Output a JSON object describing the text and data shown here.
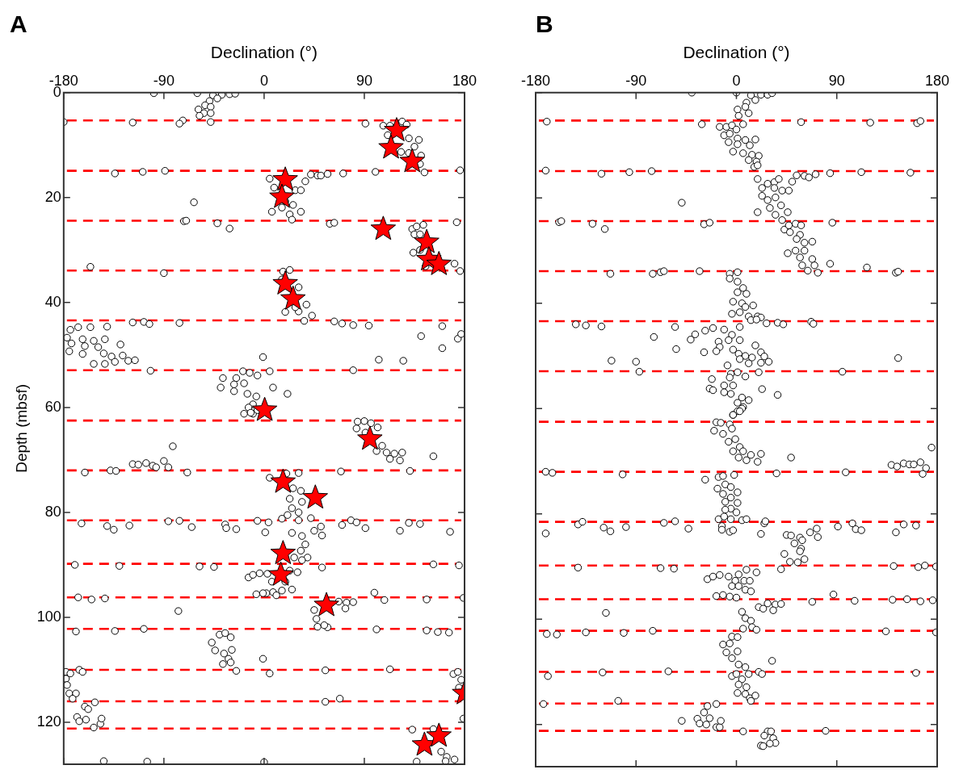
{
  "chart_data": [
    {
      "type": "scatter",
      "title": "A",
      "xlabel": "Declination (°)",
      "ylabel": "Depth (mbsf)",
      "xlim": [
        -180,
        180
      ],
      "xticks": [
        -180,
        -90,
        0,
        90,
        180
      ],
      "ylim": [
        128,
        0
      ],
      "yticks": [
        0,
        20,
        40,
        60,
        80,
        100,
        120
      ],
      "grid": false,
      "legend": false,
      "ref_lines": [
        {
          "axis": "y",
          "value": 5.3,
          "color": "#ff0000",
          "line_style": "dashed"
        },
        {
          "axis": "y",
          "value": 14.9,
          "color": "#ff0000",
          "line_style": "dashed"
        },
        {
          "axis": "y",
          "value": 24.4,
          "color": "#ff0000",
          "line_style": "dashed"
        },
        {
          "axis": "y",
          "value": 33.9,
          "color": "#ff0000",
          "line_style": "dashed"
        },
        {
          "axis": "y",
          "value": 43.4,
          "color": "#ff0000",
          "line_style": "dashed"
        },
        {
          "axis": "y",
          "value": 52.9,
          "color": "#ff0000",
          "line_style": "dashed"
        },
        {
          "axis": "y",
          "value": 62.5,
          "color": "#ff0000",
          "line_style": "dashed"
        },
        {
          "axis": "y",
          "value": 72.0,
          "color": "#ff0000",
          "line_style": "dashed"
        },
        {
          "axis": "y",
          "value": 81.5,
          "color": "#ff0000",
          "line_style": "dashed"
        },
        {
          "axis": "y",
          "value": 89.8,
          "color": "#ff0000",
          "line_style": "dashed"
        },
        {
          "axis": "y",
          "value": 96.2,
          "color": "#ff0000",
          "line_style": "dashed"
        },
        {
          "axis": "y",
          "value": 102.2,
          "color": "#ff0000",
          "line_style": "dashed"
        },
        {
          "axis": "y",
          "value": 110.0,
          "color": "#ff0000",
          "line_style": "dashed"
        },
        {
          "axis": "y",
          "value": 116.0,
          "color": "#ff0000",
          "line_style": "dashed"
        },
        {
          "axis": "y",
          "value": 121.2,
          "color": "#ff0000",
          "line_style": "dashed"
        }
      ],
      "series": [
        {
          "color": "#ffffff",
          "marker": "circle",
          "x": [
            -99,
            -60,
            -46,
            -38,
            -31,
            -26,
            -42,
            -49,
            -53,
            -48,
            -59,
            -54,
            -48,
            -58,
            -48,
            -73,
            -76,
            -118,
            -180,
            91,
            107,
            113,
            124,
            128,
            111,
            130,
            139,
            135,
            123,
            130,
            141,
            140,
            144,
            100,
            176,
            -134,
            -109,
            -89,
            5,
            9,
            28,
            33,
            7,
            16,
            23,
            25,
            33,
            26,
            19,
            37,
            42,
            48,
            51,
            57,
            71,
            -63,
            -72,
            -70,
            -42,
            -31,
            59,
            63,
            173,
            133,
            137,
            143,
            135,
            140,
            134,
            140,
            145,
            171,
            176,
            -156,
            -90,
            17,
            23,
            16,
            31,
            19,
            31,
            38,
            43,
            36,
            28,
            -118,
            -108,
            -103,
            -76,
            63,
            70,
            80,
            94,
            160,
            -174,
            -167,
            -156,
            -141,
            -177,
            -163,
            -153,
            -143,
            -173,
            -161,
            -149,
            -129,
            -175,
            -163,
            -144,
            -137,
            -127,
            -122,
            -116,
            -153,
            -134,
            -143,
            141,
            160,
            174,
            177,
            -1,
            103,
            125,
            -102,
            80,
            -37,
            -39,
            -19,
            -13,
            -6,
            -25,
            -27,
            -18,
            -27,
            -15,
            5,
            8,
            21,
            -7,
            -10,
            -14,
            -18,
            -10,
            -12,
            -6,
            84,
            90,
            96,
            102,
            83,
            91,
            106,
            101,
            110,
            117,
            124,
            122,
            113,
            152,
            -82,
            -118,
            -113,
            -106,
            -100,
            -97,
            -90,
            -86,
            -161,
            -138,
            -133,
            -69,
            69,
            131,
            5,
            20,
            31,
            26,
            33,
            23,
            34,
            25,
            31,
            21,
            16,
            31,
            42,
            -164,
            -141,
            -135,
            -121,
            -86,
            -76,
            -65,
            -35,
            -34,
            -25,
            -6,
            4,
            1,
            45,
            51,
            52,
            70,
            78,
            83,
            91,
            122,
            130,
            140,
            167,
            25,
            34,
            37,
            33,
            39,
            34,
            27,
            -170,
            -130,
            -58,
            -45,
            52,
            152,
            175,
            -14,
            -10,
            -4,
            3,
            23,
            30,
            7,
            19,
            25,
            16,
            8,
            2,
            -7,
            -1,
            11,
            -167,
            -155,
            -143,
            99,
            108,
            146,
            179,
            -77,
            67,
            74,
            80,
            73,
            45,
            47,
            48,
            57,
            54,
            -169,
            -134,
            -108,
            101,
            146,
            156,
            166,
            -47,
            -40,
            -35,
            -30,
            -44,
            -36,
            -29,
            -32,
            -37,
            -30,
            -25,
            -1,
            5,
            55,
            113,
            -166,
            -163,
            -178,
            -174,
            -178,
            -177,
            -175,
            -169,
            -172,
            170,
            174,
            177,
            175,
            179,
            55,
            68,
            -161,
            -152,
            -158,
            -168,
            -166,
            -160,
            -153,
            -147,
            -146,
            133,
            152,
            159,
            164,
            171,
            137,
            163,
            -144,
            -105,
            0
          ],
          "values": [
            0.1,
            0.1,
            0.5,
            0.4,
            0.3,
            0.2,
            1.1,
            1.6,
            2.4,
            2.7,
            3.2,
            3.9,
            3.9,
            4.4,
            5.6,
            5.3,
            5.9,
            5.7,
            5.6,
            5.9,
            6.3,
            6.3,
            5.5,
            6.1,
            8.1,
            8.7,
            9.0,
            10.3,
            11.3,
            11.5,
            12.0,
            13.6,
            15.2,
            15.1,
            14.8,
            15.4,
            15.1,
            14.9,
            16.4,
            18.1,
            18.6,
            18.6,
            22.7,
            21.9,
            23.2,
            24.2,
            22.7,
            21.4,
            20.7,
            16.9,
            15.6,
            15.8,
            15.8,
            15.5,
            15.4,
            20.9,
            24.5,
            24.4,
            24.9,
            25.9,
            25.0,
            24.8,
            24.7,
            26.0,
            25.5,
            25.2,
            27.0,
            27.0,
            30.5,
            30.0,
            33.1,
            32.6,
            34.0,
            33.2,
            34.4,
            34.1,
            33.8,
            35.6,
            37.1,
            41.8,
            41.7,
            40.4,
            42.5,
            43.5,
            40.9,
            43.8,
            43.7,
            44.1,
            43.9,
            43.6,
            44.0,
            44.3,
            44.4,
            44.5,
            45.2,
            44.7,
            44.7,
            44.6,
            46.7,
            47.0,
            47.3,
            47.0,
            47.8,
            48.3,
            48.5,
            48.0,
            49.3,
            49.8,
            49.7,
            50.3,
            50.1,
            51.1,
            51.0,
            51.7,
            51.3,
            51.7,
            46.4,
            48.7,
            46.9,
            46.0,
            50.4,
            50.9,
            51.1,
            53.0,
            52.9,
            54.4,
            56.2,
            53.1,
            53.4,
            53.9,
            54.4,
            55.6,
            55.4,
            56.9,
            57.4,
            53.1,
            56.2,
            57.4,
            57.9,
            59.4,
            60.0,
            61.2,
            61.2,
            61.0,
            60.5,
            62.7,
            62.6,
            63.0,
            63.8,
            64.0,
            64.8,
            67.3,
            68.3,
            68.6,
            68.8,
            68.6,
            70.1,
            69.8,
            69.3,
            67.4,
            70.8,
            70.9,
            70.6,
            71.1,
            71.4,
            70.2,
            71.4,
            72.4,
            72.0,
            72.1,
            72.4,
            72.2,
            72.1,
            73.4,
            72.6,
            72.5,
            75.4,
            75.9,
            77.4,
            78.0,
            79.2,
            80.0,
            80.5,
            81.2,
            81.5,
            81.1,
            82.1,
            82.6,
            83.3,
            82.5,
            81.7,
            81.6,
            82.8,
            82.3,
            83.0,
            83.2,
            81.6,
            81.9,
            83.8,
            83.5,
            82.7,
            84.4,
            82.4,
            81.5,
            81.9,
            83.0,
            83.5,
            82.0,
            82.2,
            83.7,
            83.9,
            84.5,
            86.1,
            87.3,
            88.6,
            89.1,
            88.6,
            90.0,
            90.2,
            90.3,
            90.4,
            90.5,
            89.9,
            90.1,
            92.4,
            91.9,
            91.6,
            91.7,
            91.1,
            91.4,
            93.2,
            93.2,
            94.7,
            94.9,
            95.2,
            95.4,
            95.6,
            95.4,
            95.8,
            96.2,
            96.6,
            96.4,
            95.3,
            96.7,
            96.6,
            96.3,
            98.8,
            97.0,
            97.2,
            97.1,
            98.3,
            98.6,
            100.3,
            101.8,
            101.9,
            101.5,
            102.7,
            102.6,
            102.2,
            102.3,
            102.5,
            102.8,
            102.9,
            104.8,
            103.3,
            103.0,
            103.8,
            106.3,
            106.9,
            106.2,
            107.9,
            108.9,
            108.6,
            110.2,
            107.9,
            110.7,
            110.1,
            109.9,
            110.0,
            110.4,
            110.4,
            110.7,
            111.7,
            112.9,
            114.5,
            114.5,
            115.5,
            110.8,
            110.4,
            111.9,
            113.4,
            119.3,
            116.1,
            115.5,
            117.0,
            116.2,
            117.5,
            119.0,
            119.8,
            119.5,
            121.0,
            120.3,
            119.3,
            121.4,
            121.3,
            125.6,
            126.6,
            127.1,
            127.5,
            127.4,
            127.4,
            127.5,
            127.6
          ]
        },
        {
          "color": "#ff0000",
          "marker": "star",
          "x": [
            119,
            114,
            133,
            19,
            16,
            107,
            146,
            148,
            157,
            19,
            26,
            0.5,
            95,
            17,
            46,
            17,
            15,
            56,
            144,
            157,
            180
          ],
          "values": [
            7.2,
            10.5,
            13.1,
            16.6,
            19.9,
            26.0,
            28.5,
            31.8,
            32.7,
            36.4,
            39.3,
            60.5,
            66.0,
            74.2,
            77.2,
            87.8,
            91.9,
            97.7,
            124.3,
            122.6,
            114.5
          ]
        }
      ]
    },
    {
      "type": "scatter",
      "title": "B",
      "xlabel": "Declination (°)",
      "xlim": [
        -180,
        180
      ],
      "xticks": [
        -180,
        -90,
        0,
        90,
        180
      ],
      "ylim": [
        128,
        0
      ],
      "yticks": [
        0,
        20,
        40,
        60,
        80,
        100,
        120
      ],
      "tick_labels": "x",
      "grid": false,
      "legend": false,
      "ref_lines": [
        {
          "axis": "y",
          "value": 5.3,
          "color": "#ff0000",
          "line_style": "dashed"
        },
        {
          "axis": "y",
          "value": 14.9,
          "color": "#ff0000",
          "line_style": "dashed"
        },
        {
          "axis": "y",
          "value": 24.4,
          "color": "#ff0000",
          "line_style": "dashed"
        },
        {
          "axis": "y",
          "value": 33.9,
          "color": "#ff0000",
          "line_style": "dashed"
        },
        {
          "axis": "y",
          "value": 43.4,
          "color": "#ff0000",
          "line_style": "dashed"
        },
        {
          "axis": "y",
          "value": 52.9,
          "color": "#ff0000",
          "line_style": "dashed"
        },
        {
          "axis": "y",
          "value": 62.5,
          "color": "#ff0000",
          "line_style": "dashed"
        },
        {
          "axis": "y",
          "value": 72.0,
          "color": "#ff0000",
          "line_style": "dashed"
        },
        {
          "axis": "y",
          "value": 81.5,
          "color": "#ff0000",
          "line_style": "dashed"
        },
        {
          "axis": "y",
          "value": 89.8,
          "color": "#ff0000",
          "line_style": "dashed"
        },
        {
          "axis": "y",
          "value": 96.2,
          "color": "#ff0000",
          "line_style": "dashed"
        },
        {
          "axis": "y",
          "value": 102.2,
          "color": "#ff0000",
          "line_style": "dashed"
        },
        {
          "axis": "y",
          "value": 110.0,
          "color": "#ff0000",
          "line_style": "dashed"
        },
        {
          "axis": "y",
          "value": 116.0,
          "color": "#ff0000",
          "line_style": "dashed"
        },
        {
          "axis": "y",
          "value": 121.2,
          "color": "#ff0000",
          "line_style": "dashed"
        }
      ],
      "series": [
        {
          "color": "#ffffff",
          "marker": "circle",
          "x": [
            0,
            -40,
            13,
            22,
            28,
            32,
            17,
            9,
            8,
            1,
            11,
            2,
            6,
            58,
            120,
            162,
            165,
            -170,
            -31,
            -15,
            -9,
            -4,
            -11,
            -6,
            0,
            1,
            -7,
            8,
            17,
            1,
            12,
            -3,
            6,
            14,
            20,
            11,
            18,
            16,
            19,
            -171,
            -121,
            -96,
            -76,
            54,
            61,
            65,
            71,
            84,
            112,
            156,
            50,
            19,
            28,
            34,
            38,
            23,
            34,
            41,
            47,
            23,
            35,
            28,
            40,
            30,
            46,
            35,
            41,
            19,
            -49,
            -159,
            -157,
            -129,
            -118,
            -29,
            -24,
            86,
            43,
            47,
            53,
            58,
            48,
            57,
            54,
            61,
            68,
            46,
            53,
            61,
            57,
            68,
            59,
            70,
            64,
            73,
            84,
            117,
            143,
            145,
            -113,
            -75,
            -68,
            -65,
            -33,
            -6,
            1,
            -6,
            1,
            6,
            1,
            9,
            -3,
            5,
            15,
            8,
            3,
            -4,
            11,
            19,
            22,
            13,
            18,
            -144,
            -135,
            -121,
            27,
            37,
            42,
            67,
            69,
            -55,
            -74,
            -54,
            -41,
            -37,
            -28,
            -21,
            -11,
            -4,
            3,
            -16,
            -7,
            3,
            -15,
            -3,
            17,
            -29,
            -18,
            2,
            8,
            22,
            25,
            29,
            14,
            3,
            11,
            22,
            -8,
            20,
            145,
            -112,
            -90,
            -87,
            95,
            -5,
            1,
            8,
            -6,
            -11,
            -3,
            -11,
            -5,
            -22,
            -24,
            -21,
            23,
            37,
            5,
            11,
            1,
            6,
            1,
            -3,
            5,
            -3,
            3,
            -18,
            -14,
            -6,
            -20,
            -12,
            -4,
            -7,
            -1,
            3,
            -3,
            6,
            2,
            9,
            13,
            22,
            19,
            49,
            139,
            144,
            150,
            155,
            159,
            165,
            170,
            167,
            175,
            -171,
            -165,
            -102,
            36,
            98,
            -28,
            -2,
            -16,
            -12,
            -10,
            -17,
            -5,
            1,
            -12,
            -5,
            -10,
            1,
            -5,
            -10,
            0,
            -16,
            -11,
            -5,
            5,
            9,
            -13,
            -13,
            -6,
            -3,
            -171,
            -142,
            -138,
            -119,
            -113,
            -99,
            -65,
            -55,
            -43,
            25,
            26,
            22,
            66,
            72,
            73,
            91,
            104,
            107,
            112,
            143,
            150,
            161,
            45,
            49,
            57,
            52,
            58,
            57,
            43,
            48,
            55,
            61,
            59,
            40,
            -142,
            -68,
            -56,
            141,
            163,
            169,
            179,
            -26,
            -21,
            -15,
            -7,
            2,
            9,
            18,
            -1,
            7,
            12,
            -4,
            2,
            8,
            13,
            -18,
            -12,
            -6,
            0,
            68,
            87,
            106,
            140,
            153,
            165,
            176,
            -117,
            28,
            35,
            40,
            20,
            24,
            33,
            5,
            8,
            13,
            6,
            14,
            18,
            -170,
            -161,
            -135,
            -101,
            -75,
            134,
            179,
            -4,
            1,
            -12,
            -6,
            -9,
            1,
            -4,
            2,
            8,
            32,
            -4,
            0,
            -169,
            -120,
            -61,
            20,
            23,
            161,
            5,
            11,
            2,
            9,
            1,
            8,
            12,
            17,
            13,
            -173,
            -106,
            -26,
            -18,
            -29,
            -24,
            -35,
            -33,
            -27,
            -18,
            -15,
            -14,
            -49,
            6,
            80,
            28,
            31,
            25,
            33,
            35,
            30,
            22,
            24
          ],
          "values": [
            0.0,
            0.0,
            0.5,
            0.4,
            0.4,
            0.1,
            1.4,
            1.9,
            2.7,
            3.2,
            3.9,
            4.4,
            6.0,
            5.6,
            5.7,
            5.8,
            5.4,
            5.5,
            6.0,
            6.5,
            6.5,
            6.2,
            8.1,
            7.8,
            7.0,
            8.7,
            9.4,
            9.0,
            8.9,
            9.8,
            10.0,
            11.2,
            11.5,
            11.8,
            12.0,
            12.8,
            13.1,
            14.1,
            13.8,
            14.8,
            15.4,
            15.1,
            14.9,
            15.7,
            15.8,
            16.1,
            15.5,
            15.3,
            15.1,
            15.2,
            16.9,
            16.4,
            17.3,
            17.0,
            16.4,
            18.1,
            18.1,
            18.6,
            18.6,
            19.6,
            19.9,
            20.4,
            21.4,
            21.9,
            22.7,
            23.2,
            24.2,
            22.7,
            20.9,
            24.6,
            24.4,
            24.9,
            25.9,
            25.0,
            24.7,
            24.7,
            26.0,
            25.2,
            24.9,
            25.2,
            26.5,
            27.0,
            27.8,
            28.5,
            28.3,
            30.5,
            30.0,
            30.0,
            31.3,
            31.6,
            32.8,
            32.8,
            33.8,
            34.2,
            32.5,
            33.2,
            34.2,
            34.0,
            34.4,
            34.4,
            34.1,
            33.9,
            33.9,
            34.4,
            34.1,
            35.3,
            35.9,
            37.1,
            37.9,
            38.2,
            39.7,
            40.0,
            40.4,
            40.7,
            41.7,
            42.0,
            42.5,
            42.5,
            42.7,
            43.2,
            43.1,
            44.0,
            44.2,
            44.4,
            43.8,
            43.7,
            44.0,
            43.5,
            43.9,
            44.5,
            46.4,
            48.7,
            46.9,
            45.9,
            45.2,
            44.7,
            45.0,
            46.0,
            44.5,
            47.3,
            47.0,
            47.0,
            48.3,
            48.8,
            48.0,
            49.3,
            49.1,
            49.6,
            50.0,
            49.3,
            50.1,
            51.1,
            50.3,
            50.6,
            51.4,
            51.3,
            51.8,
            53.1,
            50.4,
            50.9,
            51.1,
            53.0,
            53.0,
            53.4,
            53.1,
            53.9,
            54.1,
            55.6,
            55.6,
            56.9,
            57.2,
            54.4,
            56.2,
            56.5,
            56.3,
            57.4,
            57.9,
            58.4,
            58.9,
            59.7,
            60.5,
            61.2,
            60.0,
            61.2,
            60.5,
            62.6,
            62.7,
            63.0,
            64.2,
            64.8,
            63.8,
            66.3,
            65.8,
            67.3,
            68.1,
            68.1,
            69.3,
            69.8,
            68.8,
            68.6,
            70.1,
            69.3,
            70.7,
            71.0,
            70.4,
            70.6,
            70.6,
            70.2,
            71.3,
            72.4,
            67.4,
            72.0,
            72.2,
            72.5,
            72.3,
            72.1,
            73.5,
            72.6,
            73.0,
            72.8,
            74.4,
            75.2,
            74.9,
            75.9,
            76.2,
            76.9,
            77.7,
            77.9,
            79.0,
            79.2,
            79.7,
            81.0,
            80.5,
            81.0,
            81.2,
            81.0,
            82.3,
            83.0,
            83.4,
            83.1,
            83.7,
            82.0,
            81.5,
            82.6,
            83.3,
            82.5,
            81.7,
            81.4,
            82.8,
            81.8,
            81.4,
            83.8,
            83.5,
            82.8,
            84.4,
            82.4,
            81.8,
            82.9,
            83.1,
            83.5,
            82.0,
            82.2,
            84.0,
            84.1,
            84.5,
            85.6,
            86.6,
            87.1,
            87.6,
            89.1,
            89.2,
            88.6,
            85.0,
            90.5,
            90.2,
            90.3,
            90.4,
            89.9,
            90.1,
            89.8,
            90.0,
            92.4,
            91.9,
            91.6,
            91.9,
            91.5,
            90.6,
            91.1,
            92.7,
            92.7,
            92.7,
            93.7,
            93.7,
            94.4,
            94.7,
            95.6,
            95.4,
            95.7,
            95.9,
            96.7,
            95.3,
            96.5,
            96.3,
            96.2,
            96.6,
            96.4,
            98.8,
            97.0,
            97.2,
            97.1,
            97.7,
            98.0,
            98.3,
            98.6,
            99.8,
            100.3,
            101.8,
            101.5,
            102.0,
            102.8,
            102.9,
            102.5,
            102.6,
            102.2,
            102.3,
            102.5,
            103.3,
            103.4,
            104.8,
            104.6,
            106.3,
            106.1,
            107.4,
            108.6,
            109.1,
            107.9,
            110.8,
            110.4,
            110.8,
            110.1,
            109.9,
            110.0,
            110.4,
            110.2,
            111.4,
            110.4,
            112.4,
            112.9,
            114.0,
            114.2,
            115.0,
            114.5,
            115.5,
            116.1,
            115.5,
            116.5,
            116.1,
            117.7,
            118.8,
            118.9,
            119.8,
            120.0,
            120.5,
            120.5,
            119.3,
            119.3,
            121.3,
            121.2,
            121.3,
            121.3,
            122.1,
            122.6,
            123.5,
            123.6,
            124.0,
            124.1
          ]
        }
      ]
    }
  ]
}
